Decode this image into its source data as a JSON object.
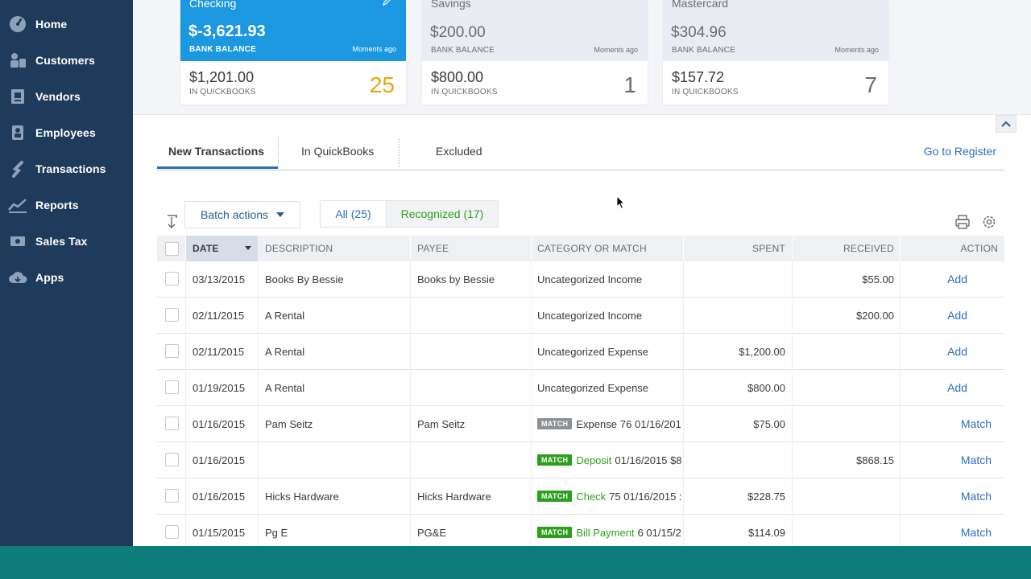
{
  "sidebar": {
    "items": [
      {
        "label": "Home",
        "icon": "dashboard-icon"
      },
      {
        "label": "Customers",
        "icon": "customers-icon"
      },
      {
        "label": "Vendors",
        "icon": "vendors-icon"
      },
      {
        "label": "Employees",
        "icon": "employees-icon"
      },
      {
        "label": "Transactions",
        "icon": "transactions-icon"
      },
      {
        "label": "Reports",
        "icon": "reports-icon"
      },
      {
        "label": "Sales Tax",
        "icon": "sales-tax-icon"
      },
      {
        "label": "Apps",
        "icon": "apps-icon"
      }
    ]
  },
  "accounts": [
    {
      "name": "Checking",
      "balance": "$-3,621.93",
      "balance_label": "BANK BALANCE",
      "updated": "Moments ago",
      "qb_amount": "$1,201.00",
      "qb_label": "IN QUICKBOOKS",
      "count": "25"
    },
    {
      "name": "Savings",
      "balance": "$200.00",
      "balance_label": "BANK BALANCE",
      "updated": "Moments ago",
      "qb_amount": "$800.00",
      "qb_label": "IN QUICKBOOKS",
      "count": "1"
    },
    {
      "name": "Mastercard",
      "balance": "$304.96",
      "balance_label": "BANK BALANCE",
      "updated": "Moments ago",
      "qb_amount": "$157.72",
      "qb_label": "IN QUICKBOOKS",
      "count": "7"
    }
  ],
  "tabs": {
    "new": "New Transactions",
    "in_qb": "In QuickBooks",
    "excluded": "Excluded",
    "go_to_register": "Go to Register"
  },
  "controls": {
    "batch_actions": "Batch actions",
    "filter_all": "All (25)",
    "filter_recognized": "Recognized (17)"
  },
  "table": {
    "headers": {
      "date": "DATE",
      "description": "DESCRIPTION",
      "payee": "PAYEE",
      "category": "CATEGORY OR MATCH",
      "spent": "SPENT",
      "received": "RECEIVED",
      "action": "ACTION"
    },
    "rows": [
      {
        "date": "03/13/2015",
        "description": "Books By Bessie",
        "payee": "Books by Bessie",
        "badge": "",
        "match_type": "",
        "category": "Uncategorized Income",
        "spent": "",
        "received": "$55.00",
        "action": "Add"
      },
      {
        "date": "02/11/2015",
        "description": "A Rental",
        "payee": "",
        "badge": "",
        "match_type": "",
        "category": "Uncategorized Income",
        "spent": "",
        "received": "$200.00",
        "action": "Add"
      },
      {
        "date": "02/11/2015",
        "description": "A Rental",
        "payee": "",
        "badge": "",
        "match_type": "",
        "category": "Uncategorized Expense",
        "spent": "$1,200.00",
        "received": "",
        "action": "Add"
      },
      {
        "date": "01/19/2015",
        "description": "A Rental",
        "payee": "",
        "badge": "",
        "match_type": "",
        "category": "Uncategorized Expense",
        "spent": "$800.00",
        "received": "",
        "action": "Add"
      },
      {
        "date": "01/16/2015",
        "description": "Pam Seitz",
        "payee": "Pam Seitz",
        "badge": "MATCH",
        "badge_color": "gray",
        "match_type": "Expense",
        "category": "76 01/16/201",
        "spent": "$75.00",
        "received": "",
        "action": "Match"
      },
      {
        "date": "01/16/2015",
        "description": "",
        "payee": "",
        "badge": "MATCH",
        "badge_color": "green",
        "match_type": "Deposit",
        "category": "01/16/2015 $8",
        "spent": "",
        "received": "$868.15",
        "action": "Match"
      },
      {
        "date": "01/16/2015",
        "description": "Hicks Hardware",
        "payee": "Hicks Hardware",
        "badge": "MATCH",
        "badge_color": "green",
        "match_type": "Check",
        "category": "75 01/16/2015 :",
        "spent": "$228.75",
        "received": "",
        "action": "Match"
      },
      {
        "date": "01/15/2015",
        "description": "Pg E",
        "payee": "PG&E",
        "badge": "MATCH",
        "badge_color": "green",
        "match_type": "Bill Payment",
        "category": "6 01/15/2",
        "spent": "$114.09",
        "received": "",
        "action": "Match"
      }
    ]
  },
  "colors": {
    "sidebar": "#1f3b5c",
    "active_card": "#1b98e0",
    "link": "#2c6fb7",
    "green": "#2ca01c",
    "count_highlight": "#e8a70c",
    "bottom_bar": "#0e7c7b"
  }
}
